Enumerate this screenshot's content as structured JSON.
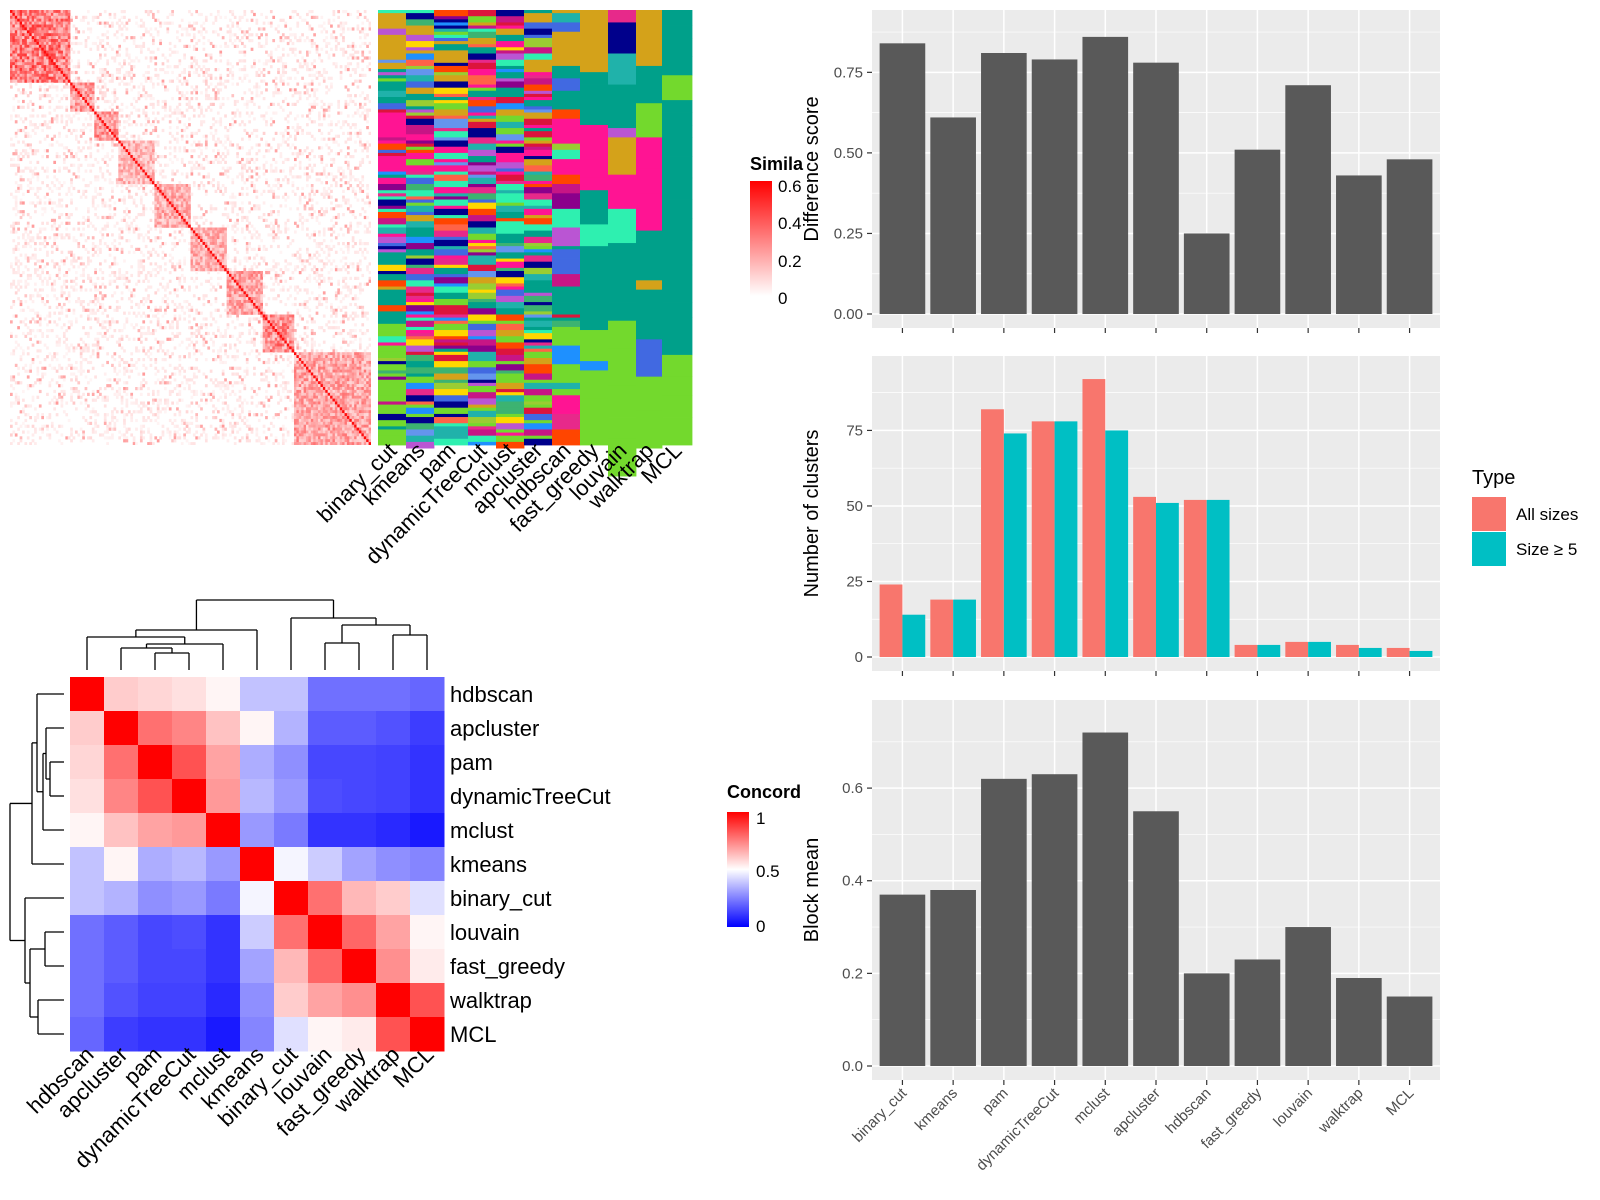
{
  "colors": {
    "panel_bg": "#ebebeb",
    "grid": "#ffffff",
    "bar_gray": "#595959",
    "all_sizes": "#f8766d",
    "size_ge5": "#00bfc4",
    "sim_high": "#ff0000",
    "sim_low": "#ffffff",
    "conc_high": "#ff0000",
    "conc_mid": "#ffffff",
    "conc_low": "#0000ff"
  },
  "similarity_heatmap": {
    "legend_title": "Simila",
    "legend_ticks": [
      "0.6",
      "0.4",
      "0.2",
      "0"
    ],
    "method_labels": [
      "binary_cut",
      "kmeans",
      "pam",
      "dynamicTreeCut",
      "mclust",
      "apcluster",
      "hdbscan",
      "fast_greedy",
      "louvain",
      "walktrap",
      "MCL"
    ]
  },
  "concordance_heatmap": {
    "legend_title": "Concord",
    "legend_ticks": [
      "1",
      "0.5",
      "0"
    ],
    "methods": [
      "hdbscan",
      "apcluster",
      "pam",
      "dynamicTreeCut",
      "mclust",
      "kmeans",
      "binary_cut",
      "louvain",
      "fast_greedy",
      "walktrap",
      "MCL"
    ]
  },
  "chart_data": [
    {
      "type": "bar",
      "categories": [
        "binary_cut",
        "kmeans",
        "pam",
        "dynamicTreeCut",
        "mclust",
        "apcluster",
        "hdbscan",
        "fast_greedy",
        "louvain",
        "walktrap",
        "MCL"
      ],
      "values": [
        0.84,
        0.61,
        0.81,
        0.79,
        0.86,
        0.78,
        0.25,
        0.51,
        0.71,
        0.43,
        0.48
      ],
      "ylabel": "Difference score",
      "yticks": [
        "0.00",
        "0.25",
        "0.50",
        "0.75"
      ],
      "ylim": [
        0,
        0.9
      ]
    },
    {
      "type": "bar",
      "categories": [
        "binary_cut",
        "kmeans",
        "pam",
        "dynamicTreeCut",
        "mclust",
        "apcluster",
        "hdbscan",
        "fast_greedy",
        "louvain",
        "walktrap",
        "MCL"
      ],
      "series": [
        {
          "name": "All sizes",
          "values": [
            24,
            19,
            82,
            78,
            92,
            53,
            52,
            4,
            5,
            4,
            3
          ]
        },
        {
          "name": "Size ≥ 5",
          "values": [
            14,
            19,
            74,
            78,
            75,
            51,
            52,
            4,
            5,
            3,
            2
          ]
        }
      ],
      "ylabel": "Number of clusters",
      "yticks": [
        "0",
        "25",
        "50",
        "75"
      ],
      "ylim": [
        0,
        95
      ],
      "legend_title": "Type",
      "legend_position": "right"
    },
    {
      "type": "bar",
      "categories": [
        "binary_cut",
        "kmeans",
        "pam",
        "dynamicTreeCut",
        "mclust",
        "apcluster",
        "hdbscan",
        "fast_greedy",
        "louvain",
        "walktrap",
        "MCL"
      ],
      "values": [
        0.37,
        0.38,
        0.62,
        0.63,
        0.72,
        0.55,
        0.2,
        0.23,
        0.3,
        0.19,
        0.15
      ],
      "ylabel": "Block mean",
      "yticks": [
        "0.0",
        "0.2",
        "0.4",
        "0.6"
      ],
      "ylim": [
        0,
        0.76
      ]
    },
    {
      "type": "heatmap",
      "rows": [
        "hdbscan",
        "apcluster",
        "pam",
        "dynamicTreeCut",
        "mclust",
        "kmeans",
        "binary_cut",
        "louvain",
        "fast_greedy",
        "walktrap",
        "MCL"
      ],
      "columns": [
        "hdbscan",
        "apcluster",
        "pam",
        "dynamicTreeCut",
        "mclust",
        "kmeans",
        "binary_cut",
        "louvain",
        "fast_greedy",
        "walktrap",
        "MCL"
      ],
      "values": [
        [
          1.0,
          0.6,
          0.58,
          0.56,
          0.52,
          0.38,
          0.38,
          0.22,
          0.22,
          0.22,
          0.2
        ],
        [
          0.6,
          1.0,
          0.78,
          0.74,
          0.62,
          0.52,
          0.35,
          0.18,
          0.18,
          0.16,
          0.12
        ],
        [
          0.58,
          0.78,
          1.0,
          0.84,
          0.68,
          0.34,
          0.28,
          0.14,
          0.14,
          0.13,
          0.1
        ],
        [
          0.56,
          0.74,
          0.84,
          1.0,
          0.7,
          0.36,
          0.3,
          0.15,
          0.14,
          0.13,
          0.1
        ],
        [
          0.52,
          0.62,
          0.68,
          0.7,
          1.0,
          0.3,
          0.24,
          0.1,
          0.1,
          0.08,
          0.05
        ],
        [
          0.38,
          0.52,
          0.34,
          0.36,
          0.3,
          1.0,
          0.48,
          0.4,
          0.32,
          0.28,
          0.26
        ],
        [
          0.38,
          0.35,
          0.28,
          0.3,
          0.24,
          0.48,
          1.0,
          0.78,
          0.64,
          0.6,
          0.44
        ],
        [
          0.22,
          0.18,
          0.14,
          0.15,
          0.1,
          0.4,
          0.78,
          1.0,
          0.8,
          0.68,
          0.52
        ],
        [
          0.22,
          0.18,
          0.14,
          0.14,
          0.1,
          0.32,
          0.64,
          0.8,
          1.0,
          0.72,
          0.54
        ],
        [
          0.22,
          0.16,
          0.13,
          0.13,
          0.08,
          0.28,
          0.6,
          0.68,
          0.72,
          1.0,
          0.84
        ],
        [
          0.2,
          0.12,
          0.1,
          0.1,
          0.05,
          0.26,
          0.44,
          0.52,
          0.54,
          0.84,
          1.0
        ]
      ],
      "legend_title": "Concord"
    }
  ]
}
